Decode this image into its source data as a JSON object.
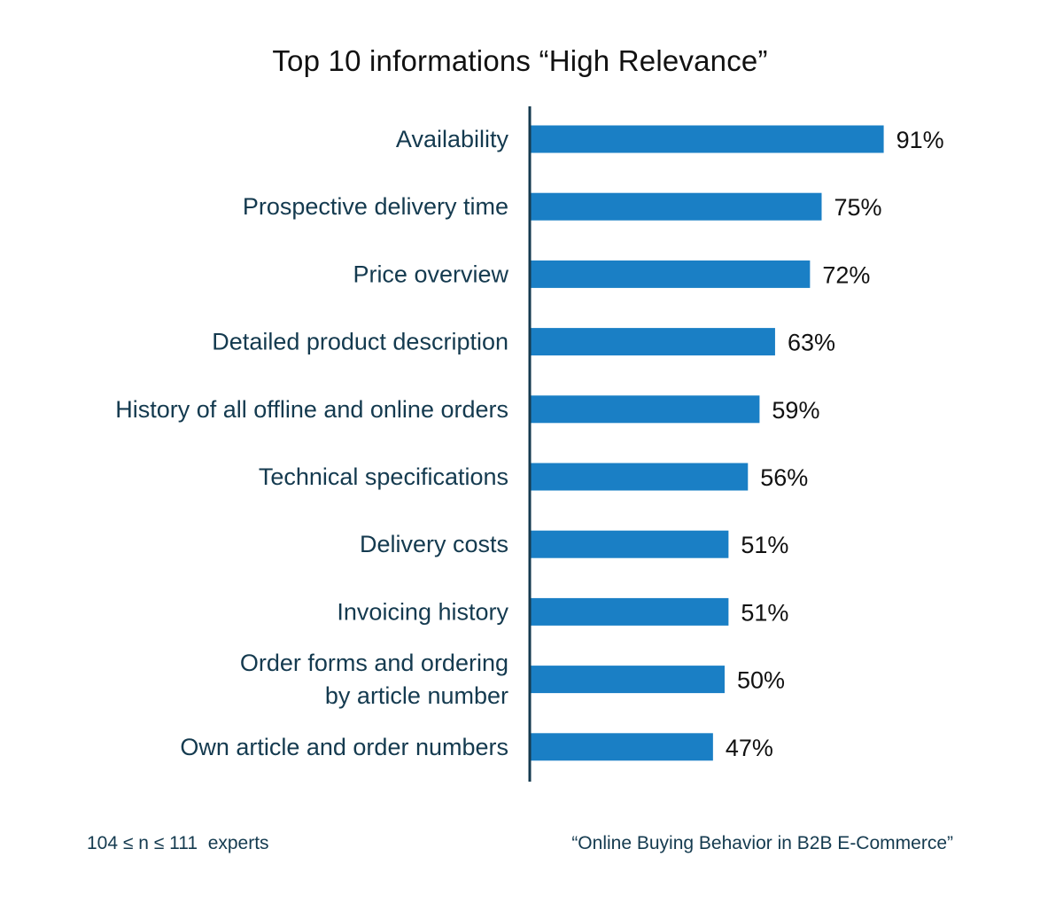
{
  "chart_data": {
    "type": "bar",
    "orientation": "horizontal",
    "title": "Top 10 informations “High Relevance”",
    "categories": [
      [
        "Availability"
      ],
      [
        "Prospective delivery time"
      ],
      [
        "Price overview"
      ],
      [
        "Detailed product description"
      ],
      [
        "History of all offline and online orders"
      ],
      [
        "Technical specifications"
      ],
      [
        "Delivery costs"
      ],
      [
        "Invoicing history"
      ],
      [
        "Order forms and ordering",
        "by article number"
      ],
      [
        "Own article and order numbers"
      ]
    ],
    "values": [
      91,
      75,
      72,
      63,
      59,
      56,
      51,
      51,
      50,
      47
    ],
    "value_labels": [
      "91%",
      "75%",
      "72%",
      "63%",
      "59%",
      "56%",
      "51%",
      "51%",
      "50%",
      "47%"
    ],
    "unit": "%",
    "xlim": [
      0,
      100
    ],
    "grid": false,
    "bar_color": "#1a7fc5",
    "axis_color": "#143a4f"
  },
  "footnotes": {
    "sample": "104 ≤ n ≤ 111  experts",
    "source": "“Online Buying Behavior in B2B E-Commerce”"
  }
}
